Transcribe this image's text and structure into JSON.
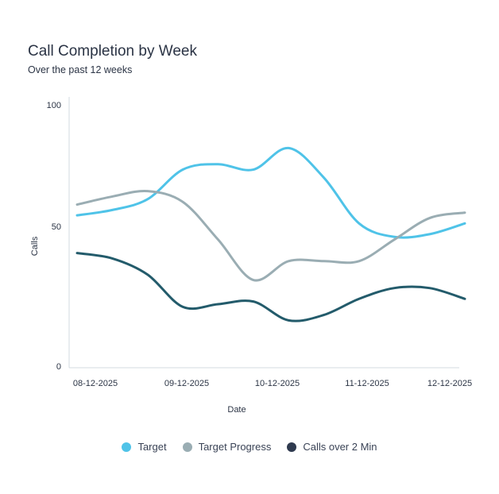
{
  "header": {
    "title": "Call Completion by Week",
    "subtitle": "Over the past 12 weeks"
  },
  "chart_data": {
    "type": "line",
    "title": "Call Completion by Week",
    "subtitle": "Over the past 12 weeks",
    "xlabel": "Date",
    "ylabel": "Calls",
    "ylim": [
      0,
      100
    ],
    "yticks": [
      "0",
      "50",
      "100"
    ],
    "xtick_labels": [
      "08-12-2025",
      "09-12-2025",
      "10-12-2025",
      "11-12-2025",
      "12-12-2025"
    ],
    "legend_position": "bottom",
    "grid": false,
    "smooth": true,
    "series": [
      {
        "name": "Target",
        "color": "#4fc3e8",
        "values": [
          56,
          58,
          62,
          73,
          75,
          73,
          81,
          70,
          53,
          48,
          49,
          53
        ]
      },
      {
        "name": "Target Progress",
        "color": "#9aadb3",
        "values": [
          60,
          63,
          65,
          61,
          47,
          32,
          39,
          39,
          39,
          47,
          55,
          57
        ]
      },
      {
        "name": "Calls over 2 Min",
        "color": "#235b6b",
        "legend_color": "#2f3a4f",
        "values": [
          42,
          40,
          34,
          22,
          23,
          24,
          17,
          19,
          25,
          29,
          29,
          25
        ]
      }
    ]
  }
}
